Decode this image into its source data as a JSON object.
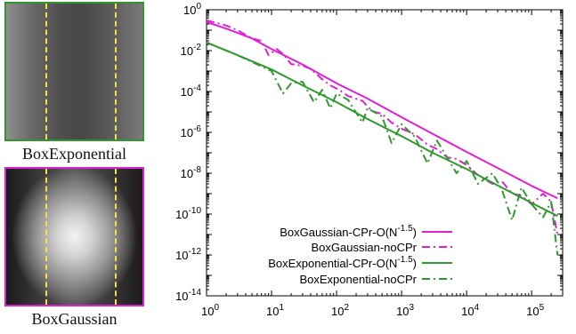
{
  "thumbnails": [
    {
      "caption": "BoxExponential",
      "border_color": "#2e9a2e"
    },
    {
      "caption": "BoxGaussian",
      "border_color": "#e020d0"
    }
  ],
  "chart_data": {
    "type": "line",
    "xscale": "log",
    "yscale": "log",
    "xlim": [
      1,
      300000
    ],
    "ylim": [
      1e-14,
      1
    ],
    "x_ticks": [
      {
        "value": 1,
        "base": "10",
        "exp": "0"
      },
      {
        "value": 10,
        "base": "10",
        "exp": "1"
      },
      {
        "value": 100,
        "base": "10",
        "exp": "2"
      },
      {
        "value": 1000,
        "base": "10",
        "exp": "3"
      },
      {
        "value": 10000,
        "base": "10",
        "exp": "4"
      },
      {
        "value": 100000,
        "base": "10",
        "exp": "5"
      }
    ],
    "y_ticks": [
      {
        "value": 1,
        "base": "10",
        "exp": "0"
      },
      {
        "value": 0.01,
        "base": "10",
        "exp": "-2"
      },
      {
        "value": 0.0001,
        "base": "10",
        "exp": "-4"
      },
      {
        "value": 1e-06,
        "base": "10",
        "exp": "-6"
      },
      {
        "value": 1e-08,
        "base": "10",
        "exp": "-8"
      },
      {
        "value": 1e-10,
        "base": "10",
        "exp": "-10"
      },
      {
        "value": 1e-12,
        "base": "10",
        "exp": "-12"
      },
      {
        "value": 1e-14,
        "base": "10",
        "exp": "-14"
      }
    ],
    "legend_position": "bottom-left",
    "series": [
      {
        "name": "BoxGaussian-CPr-O(N^-1.5)",
        "label_main": "BoxGaussian-CPr-O(N",
        "label_sup": "-1.5",
        "label_end": ")",
        "color": "#e020d0",
        "dash": "solid",
        "x": [
          1,
          2,
          5,
          10,
          30,
          100,
          300,
          1000,
          3000,
          10000,
          30000,
          100000,
          250000
        ],
        "y": [
          0.25,
          0.12,
          0.04,
          0.012,
          0.0021,
          0.00025,
          4.5e-05,
          5.5e-06,
          8.5e-07,
          1.1e-07,
          1.8e-08,
          2.4e-09,
          6e-10
        ]
      },
      {
        "name": "BoxGaussian-noCPr",
        "label_main": "BoxGaussian-noCPr",
        "label_sup": "",
        "label_end": "",
        "color": "#e020d0",
        "dash": "dashdot",
        "x": [
          1,
          2,
          3,
          5,
          7,
          9,
          12,
          15,
          20,
          30,
          40,
          60,
          80,
          110,
          150,
          250,
          350,
          500,
          700,
          1000,
          1600,
          2500,
          3500,
          5000,
          7000,
          10000,
          15000,
          25000,
          35000,
          50000,
          70000,
          100000,
          150000,
          200000,
          250000
        ],
        "y": [
          0.3,
          0.17,
          0.1,
          0.04,
          0.03,
          0.006,
          0.012,
          0.007,
          0.0022,
          0.0018,
          0.0013,
          0.0004,
          0.0002,
          0.00012,
          6e-05,
          3.5e-05,
          1.1e-05,
          8e-06,
          3e-06,
          1.5e-06,
          8e-07,
          2.5e-07,
          1.5e-07,
          6e-08,
          5e-08,
          2.5e-08,
          8e-09,
          3e-09,
          4e-09,
          1e-09,
          8e-10,
          3e-10,
          1e-09,
          4e-10,
          1e-11
        ]
      },
      {
        "name": "BoxExponential-CPr-O(N^-1.5)",
        "label_main": "BoxExponential-CPr-O(N",
        "label_sup": "-1.5",
        "label_end": ")",
        "color": "#2e9a2e",
        "dash": "solid",
        "x": [
          1,
          3,
          10,
          30,
          100,
          300,
          1000,
          3000,
          10000,
          30000,
          100000,
          250000
        ],
        "y": [
          0.025,
          0.006,
          0.0012,
          0.0002,
          3e-05,
          4.5e-06,
          6.5e-07,
          1e-07,
          1.6e-08,
          2.5e-09,
          3.5e-10,
          8e-11
        ]
      },
      {
        "name": "BoxExponential-noCPr",
        "label_main": "BoxExponential-noCPr",
        "label_sup": "",
        "label_end": "",
        "color": "#2e9a2e",
        "dash": "dashdot",
        "x": [
          1,
          3,
          10,
          15,
          20,
          30,
          45,
          60,
          80,
          100,
          150,
          250,
          300,
          500,
          700,
          1000,
          1600,
          2500,
          3500,
          5000,
          7000,
          10000,
          15000,
          25000,
          35000,
          50000,
          70000,
          100000,
          150000,
          200000,
          250000
        ],
        "y": [
          0.025,
          0.006,
          0.001,
          8e-05,
          0.00025,
          0.0003,
          3e-05,
          0.00012,
          1.5e-05,
          8e-05,
          4e-05,
          3e-06,
          1.5e-05,
          6e-06,
          3e-07,
          2.5e-06,
          6e-07,
          3e-08,
          4e-07,
          6e-08,
          1e-08,
          4e-08,
          3e-09,
          1e-08,
          1.5e-09,
          5e-11,
          2e-09,
          3e-10,
          7e-11,
          4e-10,
          1e-12
        ]
      }
    ]
  }
}
